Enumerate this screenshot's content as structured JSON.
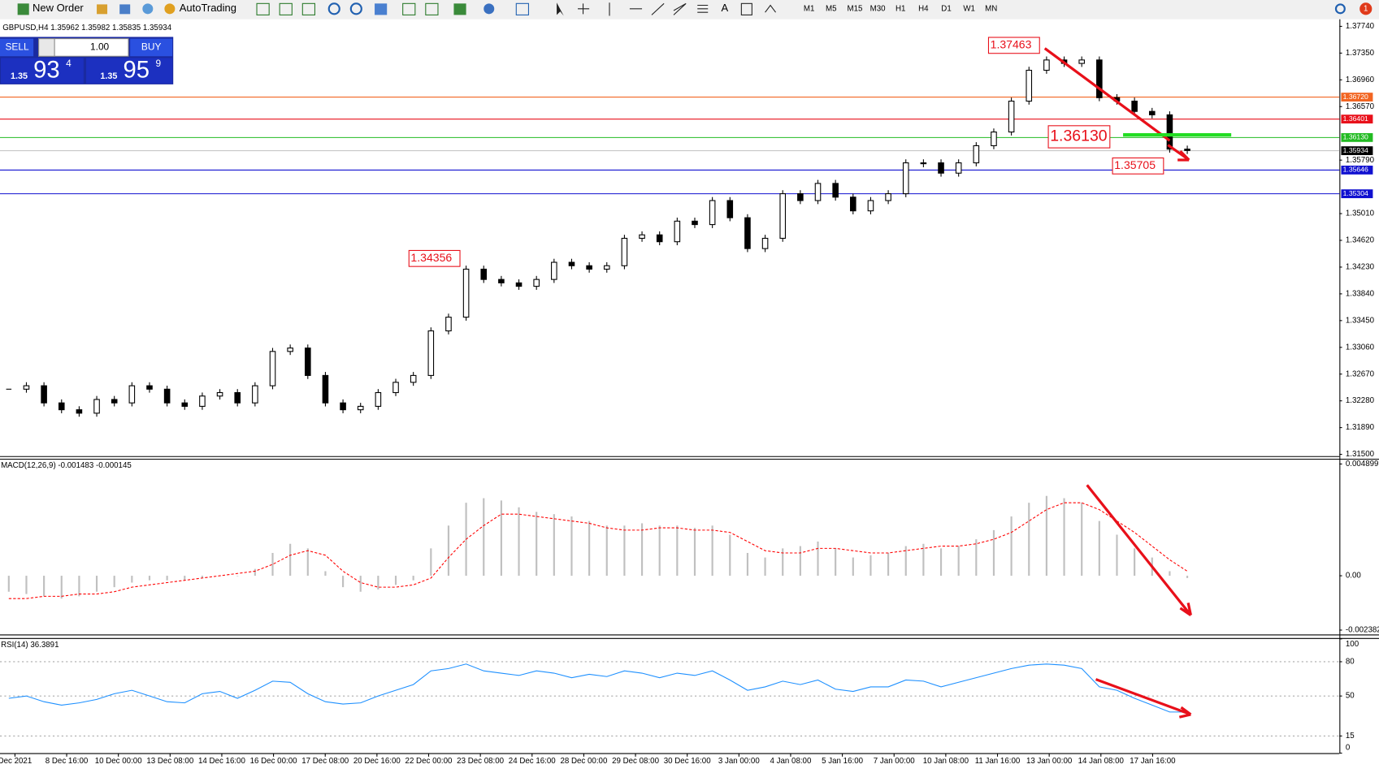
{
  "toolbar": {
    "new_order": "New Order",
    "auto_trading": "AutoTrading",
    "timeframes": [
      "M1",
      "M5",
      "M15",
      "M30",
      "H1",
      "H4",
      "D1",
      "W1",
      "MN"
    ],
    "notification": "1"
  },
  "trade_panel": {
    "sell": "SELL",
    "buy": "BUY",
    "lot": "1.00",
    "sell_prefix": "1.35",
    "sell_big": "93",
    "sell_small": "4",
    "buy_prefix": "1.35",
    "buy_big": "95",
    "buy_small": "9"
  },
  "chart_data": [
    {
      "type": "candlestick",
      "title": "GBPUSD,H4  1.35962 1.35982 1.35835 1.35934",
      "closes": [
        1.3245,
        1.325,
        1.3225,
        1.3215,
        1.321,
        1.323,
        1.3225,
        1.325,
        1.3245,
        1.3225,
        1.322,
        1.3235,
        1.324,
        1.3225,
        1.325,
        1.33,
        1.3305,
        1.3265,
        1.3225,
        1.3215,
        1.322,
        1.324,
        1.3255,
        1.3265,
        1.333,
        1.335,
        1.342,
        1.3405,
        1.34,
        1.3395,
        1.3405,
        1.343,
        1.3425,
        1.342,
        1.3425,
        1.3465,
        1.347,
        1.346,
        1.349,
        1.3485,
        1.352,
        1.3495,
        1.345,
        1.3465,
        1.353,
        1.352,
        1.3545,
        1.3525,
        1.3505,
        1.352,
        1.353,
        1.3575,
        1.3575,
        1.356,
        1.3575,
        1.36,
        1.362,
        1.3665,
        1.371,
        1.3725,
        1.372,
        1.3725,
        1.367,
        1.3665,
        1.365,
        1.3645,
        1.3595,
        1.3593
      ],
      "ylim": [
        1.315,
        1.3774
      ],
      "yticks": [
        {
          "value": 1.3774,
          "label": "1.37740"
        },
        {
          "value": 1.3735,
          "label": "1.37350"
        },
        {
          "value": 1.3696,
          "label": "1.36960"
        },
        {
          "value": 1.3657,
          "label": "1.36570"
        },
        {
          "value": 1.3579,
          "label": "1.35790"
        },
        {
          "value": 1.3501,
          "label": "1.35010"
        },
        {
          "value": 1.3462,
          "label": "1.34620"
        },
        {
          "value": 1.3423,
          "label": "1.34230"
        },
        {
          "value": 1.3384,
          "label": "1.33840"
        },
        {
          "value": 1.3345,
          "label": "1.33450"
        },
        {
          "value": 1.3306,
          "label": "1.33060"
        },
        {
          "value": 1.3267,
          "label": "1.32670"
        },
        {
          "value": 1.3228,
          "label": "1.32280"
        },
        {
          "value": 1.3189,
          "label": "1.31890"
        },
        {
          "value": 1.315,
          "label": "1.31500"
        }
      ],
      "levels": [
        {
          "value": 1.3672,
          "label": "1.36720",
          "color": "#f26522"
        },
        {
          "value": 1.36401,
          "label": "1.36401",
          "color": "#e8101a"
        },
        {
          "value": 1.3613,
          "label": "1.36130",
          "color": "#22bb22"
        },
        {
          "value": 1.35934,
          "label": "1.35934",
          "color": "#000000"
        },
        {
          "value": 1.35646,
          "label": "1.35646",
          "color": "#1010d0"
        },
        {
          "value": 1.35304,
          "label": "1.35304",
          "color": "#1010d0"
        }
      ],
      "annotations": [
        {
          "value": 1.37463,
          "label": "1.37463"
        },
        {
          "value": 1.34356,
          "label": "1.34356"
        },
        {
          "value": 1.3613,
          "label": "1.36130"
        },
        {
          "value": 1.35705,
          "label": "1.35705"
        }
      ],
      "time_labels": [
        "Dec 2021",
        "8 Dec 16:00",
        "10 Dec 00:00",
        "13 Dec 08:00",
        "14 Dec 16:00",
        "16 Dec 00:00",
        "17 Dec 08:00",
        "20 Dec 16:00",
        "22 Dec 00:00",
        "23 Dec 08:00",
        "24 Dec 16:00",
        "28 Dec 00:00",
        "29 Dec 08:00",
        "30 Dec 16:00",
        "3 Jan 00:00",
        "4 Jan 08:00",
        "5 Jan 16:00",
        "7 Jan 00:00",
        "10 Jan 08:00",
        "11 Jan 16:00",
        "13 Jan 00:00",
        "14 Jan 08:00",
        "17 Jan 16:00"
      ]
    },
    {
      "type": "macd",
      "title": "MACD(12,26,9) -0.001483 -0.000145",
      "histogram": [
        -0.0007,
        -0.0008,
        -0.0009,
        -0.001,
        -0.0009,
        -0.0007,
        -0.0005,
        -0.0003,
        -0.0002,
        -0.0002,
        -0.0002,
        -0.0001,
        0,
        0,
        0.0003,
        0.001,
        0.0014,
        0.0012,
        0.0002,
        -0.0005,
        -0.0007,
        -0.0006,
        -0.0004,
        -0.0002,
        0.0012,
        0.0022,
        0.0032,
        0.0034,
        0.0033,
        0.003,
        0.0028,
        0.0027,
        0.0026,
        0.0024,
        0.0022,
        0.0022,
        0.0023,
        0.0022,
        0.0022,
        0.0021,
        0.0022,
        0.0018,
        0.001,
        0.0008,
        0.0012,
        0.0013,
        0.0015,
        0.0012,
        0.0008,
        0.0009,
        0.001,
        0.0013,
        0.0014,
        0.0012,
        0.0013,
        0.0016,
        0.002,
        0.0026,
        0.0032,
        0.0035,
        0.0034,
        0.0032,
        0.0024,
        0.0018,
        0.0012,
        0.0008,
        0.0002,
        -0.0001
      ],
      "signal": [
        -0.001,
        -0.001,
        -0.0009,
        -0.0009,
        -0.0008,
        -0.0008,
        -0.0007,
        -0.0005,
        -0.0004,
        -0.0003,
        -0.0002,
        -0.0001,
        0,
        0.0001,
        0.0002,
        0.0005,
        0.0009,
        0.0011,
        0.0009,
        0.0002,
        -0.0003,
        -0.0005,
        -0.0005,
        -0.0004,
        -0.0001,
        0.0008,
        0.0016,
        0.0022,
        0.0027,
        0.0027,
        0.0026,
        0.0025,
        0.0024,
        0.0023,
        0.0021,
        0.002,
        0.002,
        0.0021,
        0.0021,
        0.002,
        0.002,
        0.0019,
        0.0015,
        0.0011,
        0.001,
        0.001,
        0.0012,
        0.0012,
        0.0011,
        0.001,
        0.001,
        0.0011,
        0.0012,
        0.0013,
        0.0013,
        0.0014,
        0.0016,
        0.0019,
        0.0024,
        0.0029,
        0.0032,
        0.0032,
        0.0029,
        0.0024,
        0.0019,
        0.0013,
        0.0007,
        0.0002
      ],
      "histogram_color": "#c0c0c0",
      "signal_color": "#ff0000",
      "ylim": [
        -0.002382,
        0.004899
      ],
      "yticks": [
        0.004899,
        {
          "value": 0,
          "label": "0.00"
        },
        -0.002382
      ]
    },
    {
      "type": "line",
      "title": "RSI(14) 36.3891",
      "values": [
        48,
        50,
        45,
        42,
        44,
        47,
        52,
        55,
        50,
        45,
        44,
        52,
        54,
        48,
        55,
        63,
        62,
        52,
        45,
        43,
        44,
        50,
        55,
        60,
        72,
        74,
        78,
        72,
        70,
        68,
        72,
        70,
        66,
        69,
        67,
        72,
        70,
        66,
        70,
        68,
        72,
        64,
        55,
        58,
        63,
        60,
        64,
        56,
        54,
        58,
        58,
        64,
        63,
        58,
        62,
        66,
        70,
        74,
        77,
        78,
        77,
        74,
        58,
        55,
        48,
        42,
        36,
        36
      ],
      "color": "#1e90ff",
      "ylim": [
        0,
        100
      ],
      "yticks": [
        100,
        80,
        50,
        15,
        0
      ]
    }
  ]
}
